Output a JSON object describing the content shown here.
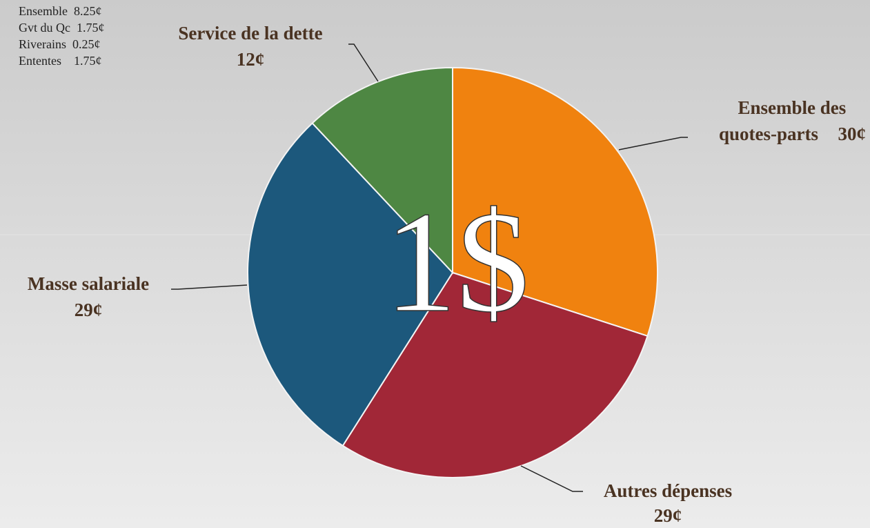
{
  "chart_data": {
    "type": "pie",
    "categories": [
      "Ensemble des quotes-parts",
      "Autres dépenses",
      "Masse salariale",
      "Service de la dette"
    ],
    "values": [
      30,
      29,
      29,
      12
    ],
    "value_labels": [
      "30¢",
      "29¢",
      "29¢",
      "12¢"
    ],
    "colors": [
      "#f0820f",
      "#a12737",
      "#1c587c",
      "#4e8743"
    ],
    "center_label": "1$",
    "annotations": [
      "Ensemble  8.25¢",
      "Gvt du Qc  1.75¢",
      "Riverains  0.25¢",
      "Ententes    1.75¢"
    ]
  }
}
